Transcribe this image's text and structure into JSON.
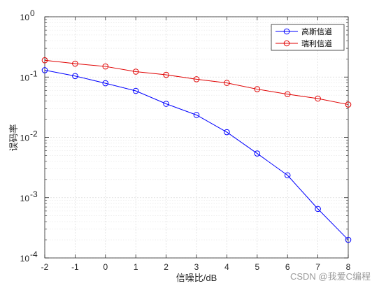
{
  "chart_data": {
    "type": "line",
    "xlabel": "信噪比/dB",
    "ylabel": "误码率",
    "x": [
      -2,
      -1,
      0,
      1,
      2,
      3,
      4,
      5,
      6,
      7,
      8
    ],
    "xlim": [
      -2,
      8
    ],
    "ylim": [
      0.0001,
      1
    ],
    "yscale": "log",
    "x_ticks": [
      "-2",
      "-1",
      "0",
      "1",
      "2",
      "3",
      "4",
      "5",
      "6",
      "7",
      "8"
    ],
    "y_ticks": [
      {
        "base": "10",
        "exp": "-4"
      },
      {
        "base": "10",
        "exp": "-3"
      },
      {
        "base": "10",
        "exp": "-2"
      },
      {
        "base": "10",
        "exp": "-1"
      },
      {
        "base": "10",
        "exp": "0"
      }
    ],
    "grid": true,
    "minor_grid": true,
    "legend_position": "top-right",
    "series": [
      {
        "name": "高斯信道",
        "color": "#0000ff",
        "marker": "circle",
        "values": [
          0.13,
          0.104,
          0.079,
          0.059,
          0.036,
          0.0235,
          0.0122,
          0.0054,
          0.00235,
          0.00065,
          0.0002
        ]
      },
      {
        "name": "瑞利信道",
        "color": "#e00000",
        "marker": "circle",
        "values": [
          0.19,
          0.167,
          0.15,
          0.123,
          0.109,
          0.092,
          0.08,
          0.063,
          0.052,
          0.044,
          0.035
        ]
      }
    ]
  },
  "watermark": "CSDN @我爱C编程"
}
